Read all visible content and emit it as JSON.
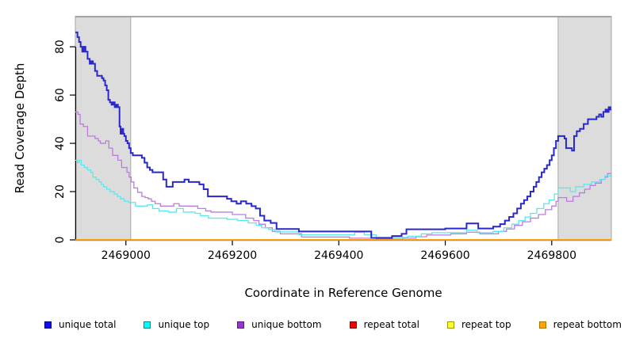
{
  "chart_data": {
    "type": "line",
    "subtype": "step-after",
    "title": "",
    "xlabel": "Coordinate in Reference Genome",
    "ylabel": "Read Coverage Depth",
    "xlim": [
      2468905,
      2469912
    ],
    "ylim": [
      0,
      92.5
    ],
    "x_ticks": [
      "2469000",
      "2469200",
      "2469400",
      "2469600",
      "2469800"
    ],
    "x_tick_values": [
      2469000,
      2469200,
      2469400,
      2469600,
      2469800
    ],
    "y_ticks": [
      "0",
      "20",
      "40",
      "60",
      "80"
    ],
    "y_tick_values": [
      0,
      20,
      40,
      60,
      80
    ],
    "grid": false,
    "legend_position": "bottom",
    "shade_color": "#dcdcdc",
    "shade_border": "#a6a6a6",
    "top_border_color": "#8c8c8c",
    "axis_color": "#000000",
    "shaded_regions": [
      {
        "x0": 2468905,
        "x1": 2469009
      },
      {
        "x0": 2469812,
        "x1": 2469912
      }
    ],
    "series": [
      {
        "name": "unique total",
        "slug": "unique-total",
        "line_color": "#2828cd",
        "legend_fill": "#0f0fff",
        "legend_border": "#00008b",
        "line_width": 2,
        "points": [
          [
            2468905,
            86
          ],
          [
            2468909,
            84
          ],
          [
            2468912,
            82
          ],
          [
            2468915,
            80
          ],
          [
            2468918,
            78
          ],
          [
            2468921,
            80
          ],
          [
            2468924,
            78
          ],
          [
            2468928,
            75
          ],
          [
            2468932,
            73
          ],
          [
            2468935,
            74
          ],
          [
            2468938,
            73
          ],
          [
            2468942,
            70
          ],
          [
            2468946,
            68
          ],
          [
            2468955,
            67
          ],
          [
            2468958,
            66
          ],
          [
            2468961,
            64
          ],
          [
            2468964,
            62
          ],
          [
            2468967,
            58
          ],
          [
            2468970,
            57
          ],
          [
            2468973,
            56
          ],
          [
            2468976,
            57
          ],
          [
            2468979,
            55
          ],
          [
            2468982,
            56
          ],
          [
            2468985,
            55
          ],
          [
            2468988,
            47
          ],
          [
            2468990,
            44
          ],
          [
            2468992,
            46
          ],
          [
            2468995,
            44
          ],
          [
            2468997,
            43
          ],
          [
            2469000,
            41
          ],
          [
            2469003,
            40
          ],
          [
            2469006,
            38
          ],
          [
            2469009,
            36
          ],
          [
            2469013,
            35
          ],
          [
            2469030,
            34
          ],
          [
            2469035,
            32
          ],
          [
            2469040,
            30
          ],
          [
            2469045,
            29
          ],
          [
            2469050,
            28
          ],
          [
            2469070,
            25
          ],
          [
            2469076,
            22
          ],
          [
            2469088,
            24
          ],
          [
            2469110,
            25
          ],
          [
            2469118,
            24
          ],
          [
            2469138,
            23
          ],
          [
            2469146,
            21
          ],
          [
            2469154,
            18
          ],
          [
            2469190,
            17
          ],
          [
            2469198,
            16
          ],
          [
            2469208,
            15
          ],
          [
            2469216,
            16
          ],
          [
            2469226,
            15
          ],
          [
            2469236,
            14
          ],
          [
            2469244,
            13
          ],
          [
            2469252,
            10
          ],
          [
            2469260,
            8
          ],
          [
            2469272,
            7
          ],
          [
            2469283,
            4.5
          ],
          [
            2469325,
            3.5
          ],
          [
            2469461,
            0.8
          ],
          [
            2469500,
            1.6
          ],
          [
            2469518,
            2.5
          ],
          [
            2469527,
            4.4
          ],
          [
            2469600,
            4.7
          ],
          [
            2469640,
            6.8
          ],
          [
            2469662,
            4.7
          ],
          [
            2469690,
            5.5
          ],
          [
            2469703,
            6.5
          ],
          [
            2469712,
            8
          ],
          [
            2469720,
            9.5
          ],
          [
            2469728,
            11
          ],
          [
            2469735,
            13
          ],
          [
            2469742,
            15
          ],
          [
            2469748,
            16.5
          ],
          [
            2469754,
            18
          ],
          [
            2469760,
            20
          ],
          [
            2469766,
            22
          ],
          [
            2469771,
            24
          ],
          [
            2469776,
            26
          ],
          [
            2469781,
            28
          ],
          [
            2469786,
            29.5
          ],
          [
            2469791,
            31
          ],
          [
            2469796,
            33
          ],
          [
            2469800,
            35
          ],
          [
            2469804,
            38
          ],
          [
            2469808,
            41
          ],
          [
            2469812,
            43
          ],
          [
            2469824,
            42
          ],
          [
            2469827,
            38
          ],
          [
            2469838,
            37
          ],
          [
            2469842,
            43
          ],
          [
            2469847,
            45
          ],
          [
            2469853,
            46
          ],
          [
            2469860,
            48
          ],
          [
            2469868,
            50
          ],
          [
            2469884,
            51
          ],
          [
            2469889,
            52
          ],
          [
            2469893,
            51
          ],
          [
            2469897,
            53
          ],
          [
            2469901,
            54
          ],
          [
            2469904,
            53
          ],
          [
            2469907,
            55
          ],
          [
            2469910,
            54
          ],
          [
            2469912,
            54
          ]
        ]
      },
      {
        "name": "unique top",
        "slug": "unique-top",
        "line_color": "#5ae8ec",
        "legend_fill": "#00ffff",
        "legend_border": "#008b8b",
        "line_width": 1.3,
        "points": [
          [
            2468905,
            33
          ],
          [
            2468909,
            32
          ],
          [
            2468912,
            33
          ],
          [
            2468916,
            31
          ],
          [
            2468922,
            30
          ],
          [
            2468928,
            29
          ],
          [
            2468934,
            28
          ],
          [
            2468938,
            26
          ],
          [
            2468944,
            25
          ],
          [
            2468950,
            24
          ],
          [
            2468954,
            23
          ],
          [
            2468958,
            22
          ],
          [
            2468964,
            21
          ],
          [
            2468970,
            20
          ],
          [
            2468978,
            19
          ],
          [
            2468984,
            18
          ],
          [
            2468990,
            17
          ],
          [
            2468997,
            16
          ],
          [
            2469005,
            15.5
          ],
          [
            2469018,
            14
          ],
          [
            2469040,
            14.5
          ],
          [
            2469050,
            13
          ],
          [
            2469062,
            12
          ],
          [
            2469080,
            11.5
          ],
          [
            2469095,
            13
          ],
          [
            2469108,
            11.5
          ],
          [
            2469130,
            11
          ],
          [
            2469140,
            10
          ],
          [
            2469155,
            9
          ],
          [
            2469190,
            8.5
          ],
          [
            2469210,
            8
          ],
          [
            2469230,
            7
          ],
          [
            2469245,
            6
          ],
          [
            2469255,
            5
          ],
          [
            2469268,
            4.3
          ],
          [
            2469280,
            3.3
          ],
          [
            2469325,
            2.1
          ],
          [
            2469430,
            3.2
          ],
          [
            2469448,
            2.1
          ],
          [
            2469470,
            1
          ],
          [
            2469530,
            1.5
          ],
          [
            2469555,
            2.5
          ],
          [
            2469575,
            3
          ],
          [
            2469640,
            4
          ],
          [
            2469660,
            3
          ],
          [
            2469690,
            3.5
          ],
          [
            2469710,
            5
          ],
          [
            2469725,
            6.5
          ],
          [
            2469738,
            8
          ],
          [
            2469750,
            9.5
          ],
          [
            2469760,
            11
          ],
          [
            2469772,
            13
          ],
          [
            2469785,
            15
          ],
          [
            2469795,
            16.5
          ],
          [
            2469805,
            19
          ],
          [
            2469812,
            21.5
          ],
          [
            2469835,
            20
          ],
          [
            2469845,
            22
          ],
          [
            2469860,
            23
          ],
          [
            2469875,
            24
          ],
          [
            2469890,
            25
          ],
          [
            2469900,
            26.5
          ],
          [
            2469912,
            26.5
          ]
        ]
      },
      {
        "name": "unique bottom",
        "slug": "unique-bottom",
        "line_color": "#bb7ce0",
        "legend_fill": "#9933cc",
        "legend_border": "#551a8b",
        "line_width": 1.3,
        "points": [
          [
            2468905,
            53
          ],
          [
            2468910,
            52
          ],
          [
            2468914,
            48
          ],
          [
            2468920,
            47
          ],
          [
            2468928,
            43
          ],
          [
            2468942,
            42
          ],
          [
            2468948,
            41
          ],
          [
            2468952,
            40
          ],
          [
            2468962,
            41
          ],
          [
            2468968,
            38
          ],
          [
            2468975,
            35
          ],
          [
            2468985,
            33
          ],
          [
            2468992,
            30
          ],
          [
            2469002,
            28
          ],
          [
            2469006,
            26
          ],
          [
            2469010,
            24
          ],
          [
            2469015,
            21.5
          ],
          [
            2469022,
            19.7
          ],
          [
            2469030,
            18
          ],
          [
            2469036,
            17.5
          ],
          [
            2469042,
            17
          ],
          [
            2469048,
            16
          ],
          [
            2469055,
            15
          ],
          [
            2469065,
            14
          ],
          [
            2469090,
            15
          ],
          [
            2469100,
            14
          ],
          [
            2469135,
            13
          ],
          [
            2469150,
            12
          ],
          [
            2469160,
            11.5
          ],
          [
            2469200,
            10.5
          ],
          [
            2469225,
            9
          ],
          [
            2469240,
            8
          ],
          [
            2469250,
            6.5
          ],
          [
            2469262,
            5
          ],
          [
            2469275,
            3.5
          ],
          [
            2469290,
            2.5
          ],
          [
            2469330,
            1.2
          ],
          [
            2469420,
            0.7
          ],
          [
            2469470,
            0.3
          ],
          [
            2469520,
            0.7
          ],
          [
            2469545,
            1.3
          ],
          [
            2469565,
            2
          ],
          [
            2469610,
            2.5
          ],
          [
            2469640,
            3.2
          ],
          [
            2469665,
            2.5
          ],
          [
            2469700,
            3.5
          ],
          [
            2469715,
            4.5
          ],
          [
            2469730,
            6
          ],
          [
            2469745,
            7.5
          ],
          [
            2469760,
            9
          ],
          [
            2469775,
            10.5
          ],
          [
            2469788,
            12.5
          ],
          [
            2469800,
            14
          ],
          [
            2469808,
            16
          ],
          [
            2469812,
            17.5
          ],
          [
            2469828,
            16
          ],
          [
            2469840,
            18
          ],
          [
            2469852,
            19.5
          ],
          [
            2469862,
            21
          ],
          [
            2469872,
            22.5
          ],
          [
            2469882,
            23.5
          ],
          [
            2469893,
            25
          ],
          [
            2469900,
            26
          ],
          [
            2469905,
            27.5
          ],
          [
            2469912,
            27.5
          ]
        ]
      },
      {
        "name": "repeat total",
        "slug": "repeat-total",
        "line_color": "#dd0000",
        "legend_fill": "#ee0000",
        "legend_border": "#8b0000",
        "line_width": 1.3,
        "points": [
          [
            2468905,
            0
          ],
          [
            2469912,
            0
          ]
        ]
      },
      {
        "name": "repeat top",
        "slug": "repeat-top",
        "line_color": "#ffff00",
        "legend_fill": "#ffff2a",
        "legend_border": "#9a9a00",
        "line_width": 1.3,
        "points": [
          [
            2468905,
            0
          ],
          [
            2469912,
            0
          ]
        ]
      },
      {
        "name": "repeat bottom",
        "slug": "repeat-bottom",
        "line_color": "#ff9d00",
        "legend_fill": "#ffa500",
        "legend_border": "#b06f00",
        "line_width": 1.8,
        "points": [
          [
            2468905,
            0
          ],
          [
            2469912,
            0
          ]
        ]
      }
    ]
  }
}
